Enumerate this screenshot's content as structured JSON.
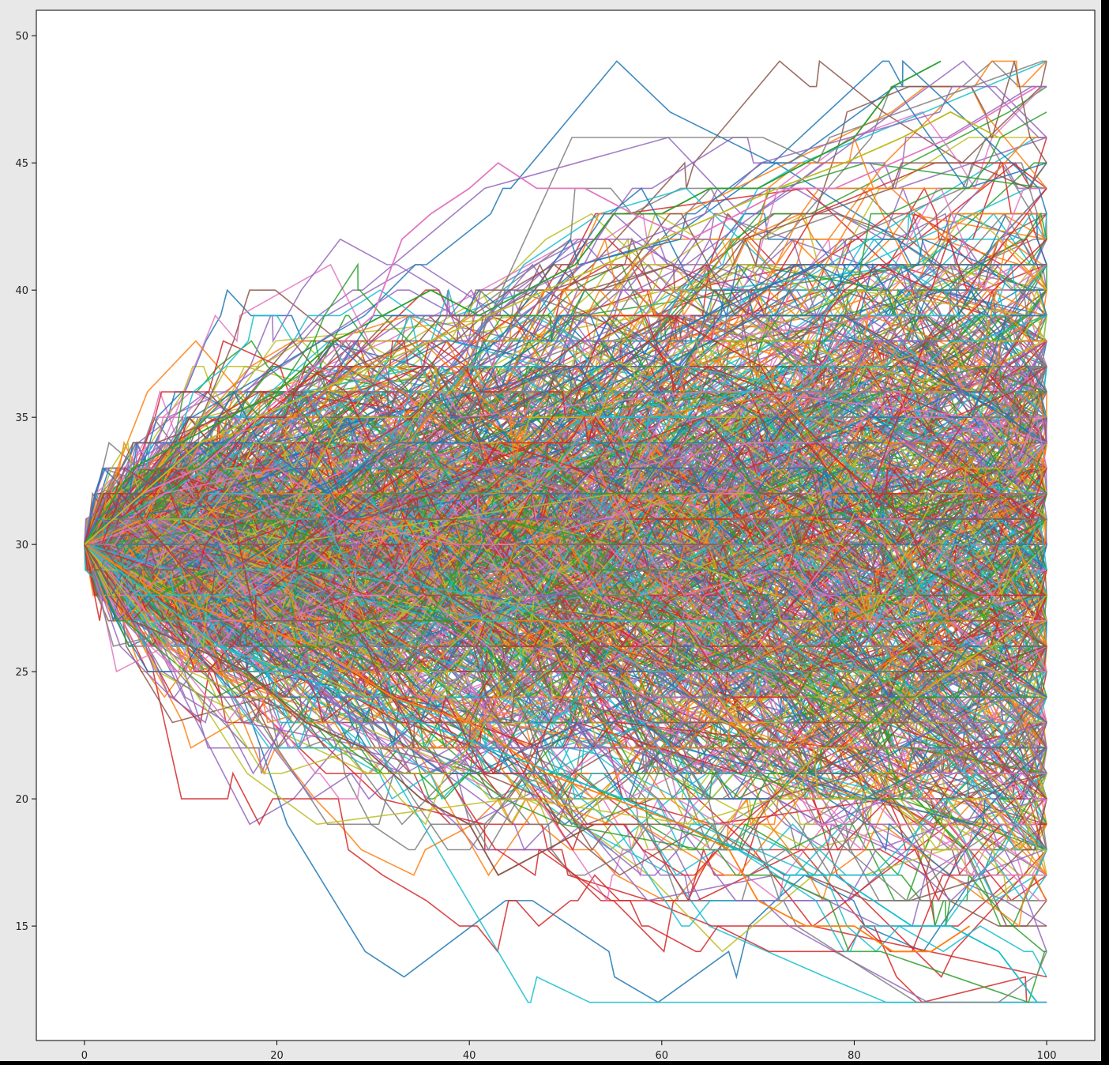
{
  "chart_data": {
    "type": "line",
    "title": "",
    "xlabel": "",
    "ylabel": "",
    "xlim": [
      -5,
      105
    ],
    "ylim": [
      10.5,
      51
    ],
    "x_ticks": [
      0,
      20,
      40,
      60,
      80,
      100
    ],
    "y_ticks": [
      15,
      20,
      25,
      30,
      35,
      40,
      45,
      50
    ],
    "grid": false,
    "legend": "none",
    "x_range": [
      0,
      100
    ],
    "start_value": 30,
    "series_count": 1000,
    "colors": [
      "#1f77b4",
      "#ff7f0e",
      "#2ca02c",
      "#d62728",
      "#9467bd",
      "#8c564b",
      "#e377c2",
      "#7f7f7f",
      "#bcbd22",
      "#17becf"
    ],
    "highlight_series": [
      {
        "x": [
          0,
          5,
          10,
          15,
          20,
          26,
          31,
          36,
          41,
          46,
          51,
          55,
          60,
          65,
          70,
          75,
          80,
          82,
          84,
          89
        ],
        "values": [
          30,
          33,
          34,
          35,
          36,
          38,
          39,
          40,
          39,
          40,
          41,
          43,
          43,
          44,
          44,
          45,
          46,
          47,
          48,
          49
        ]
      },
      {
        "x": [
          0,
          6,
          12,
          18,
          24,
          30,
          33,
          36,
          40,
          43,
          47,
          52,
          57,
          63,
          68,
          73,
          78,
          84,
          90,
          99
        ],
        "values": [
          30,
          32,
          33,
          35,
          37,
          39,
          42,
          43,
          44,
          45,
          44,
          44,
          43,
          42,
          43,
          44,
          44,
          45,
          46,
          48
        ]
      },
      {
        "x": [
          0,
          7,
          14,
          21,
          28,
          35,
          42,
          49,
          56,
          62,
          68,
          73,
          78,
          82,
          86,
          90,
          95,
          99
        ],
        "values": [
          30,
          28,
          26,
          25,
          24,
          23,
          22,
          21,
          20,
          19,
          18,
          17,
          17,
          16,
          15,
          15,
          14,
          12
        ]
      },
      {
        "x": [
          0,
          8,
          16,
          24,
          32,
          40,
          48,
          55,
          62,
          67,
          70,
          75,
          80,
          84,
          88,
          92
        ],
        "values": [
          30,
          28,
          27,
          26,
          24,
          23,
          21,
          20,
          19,
          18,
          16,
          15,
          15,
          14,
          14,
          15
        ]
      },
      {
        "x": [
          0,
          5,
          11,
          17,
          23,
          29,
          35,
          40,
          43,
          48,
          53
        ],
        "values": [
          30,
          27,
          26,
          25,
          23,
          22,
          20,
          19,
          17,
          18,
          19
        ]
      },
      {
        "x": [
          0,
          6,
          12,
          18,
          24,
          30,
          36,
          42,
          48,
          54,
          60,
          66,
          72,
          79,
          85,
          90,
          95
        ],
        "values": [
          30,
          32,
          34,
          35,
          36,
          37,
          38,
          39,
          40,
          41,
          42,
          43,
          44,
          45,
          46,
          47,
          46
        ]
      }
    ]
  }
}
